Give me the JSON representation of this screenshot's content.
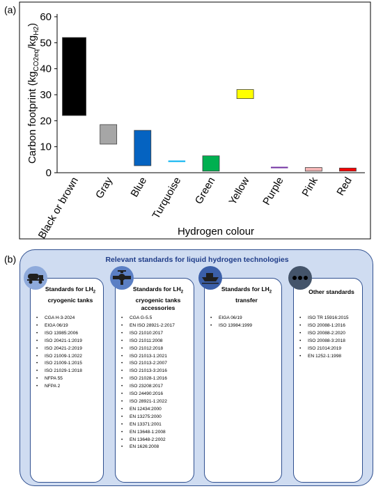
{
  "panel_a_label": "(a)",
  "panel_b_label": "(b)",
  "chart_data": {
    "type": "floating-bar",
    "xlabel": "Hydrogen colour",
    "ylabel_main": "Carbon footprint (kg",
    "ylabel_sub1": "CO2eq",
    "ylabel_mid": "/kg",
    "ylabel_sub2": "H2",
    "ylabel_end": ")",
    "ylim": [
      0,
      60
    ],
    "yticks": [
      "0",
      "10",
      "20",
      "30",
      "40",
      "50",
      "60"
    ],
    "grid": false,
    "categories": [
      "Black or brown",
      "Gray",
      "Blue",
      "Turquoise",
      "Green",
      "Yellow",
      "Purple",
      "Pink",
      "Red"
    ],
    "ranges": [
      [
        22,
        52
      ],
      [
        11,
        18.5
      ],
      [
        2.7,
        16.3
      ],
      [
        4.3,
        4.6
      ],
      [
        0.6,
        6.5
      ],
      [
        28.5,
        32
      ],
      [
        1.9,
        2.2
      ],
      [
        0.6,
        2
      ],
      [
        0.6,
        1.8
      ]
    ],
    "colors": [
      "#000000",
      "#a6a6a6",
      "#0563c1",
      "#00b0f0",
      "#00b050",
      "#ffff00",
      "#7030a0",
      "#f4b6b6",
      "#ff0000"
    ]
  },
  "standards": {
    "title": "Relevant standards for liquid hydrogen technologies",
    "groups": [
      {
        "icon": "tanker-truck-icon",
        "title_line1": "Standards for LH",
        "title_sub": "2",
        "title_line2": "cryogenic tanks",
        "title_line3": "",
        "items": [
          "CGA H-3-2024",
          "EIGA 06/19",
          "ISO 13985:2006",
          "ISO 20421-1:2019",
          "ISO 20421-2:2019",
          "ISO 21009-1:2022",
          "ISO 21009-1:2015",
          "ISO 21029-1:2018",
          "NFPA 55",
          "NFPA 2"
        ]
      },
      {
        "icon": "valve-icon",
        "title_line1": "Standards for LH",
        "title_sub": "2",
        "title_line2": "cryogenic tanks",
        "title_line3": "accessories",
        "items": [
          "CGA G-5.5",
          "EN ISO 28921-2:2017",
          "ISO 21010:2017",
          "ISO 21011:2008",
          "ISO 21012:2018",
          "ISO 21013-1:2021",
          "ISO 21013-2:2007",
          "ISO 21013-3:2016",
          "ISO 21028-1:2016",
          "ISO 23208:2017",
          "ISO 24490:2016",
          "ISO 28921-1:2022",
          "EN 12434:2000",
          "EN 13275:2000",
          "EN 13371:2001",
          "EN 13648-1:2008",
          "EN 13648-2:2002",
          "EN 1626:2008"
        ]
      },
      {
        "icon": "ship-icon",
        "title_line1": "Standards for LH",
        "title_sub": "2",
        "title_line2": "transfer",
        "title_line3": "",
        "items": [
          "EIGA 06/19",
          "ISO 13984:1999"
        ]
      },
      {
        "icon": "ellipsis-icon",
        "title_line1": "Other standards",
        "title_sub": "",
        "title_line2": "",
        "title_line3": "",
        "items": [
          "ISO TR 15916:2015",
          "ISO 20088-1:2016",
          "ISO 20088-2:2020",
          "ISO 20088-3:2018",
          "ISO 21014:2019",
          "EN 1252-1:1998"
        ]
      }
    ]
  }
}
